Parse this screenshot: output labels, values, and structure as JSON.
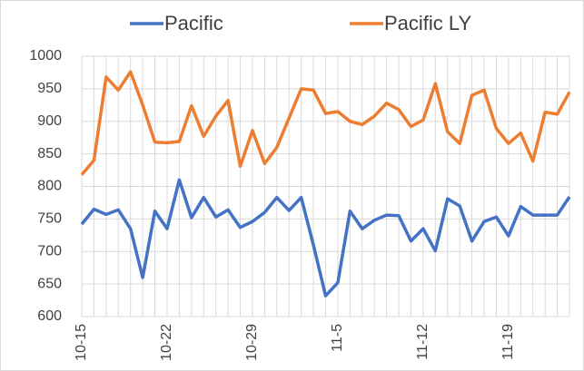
{
  "chart_data": {
    "type": "line",
    "categories": [
      "10-15",
      null,
      null,
      null,
      null,
      null,
      null,
      "10-22",
      null,
      null,
      null,
      null,
      null,
      null,
      "10-29",
      null,
      null,
      null,
      null,
      null,
      null,
      "11-5",
      null,
      null,
      null,
      null,
      null,
      null,
      "11-12",
      null,
      null,
      null,
      null,
      null,
      null,
      "11-19",
      null,
      null,
      null,
      null,
      null
    ],
    "series": [
      {
        "name": "Pacific",
        "color": "#4472c4",
        "values": [
          742,
          765,
          757,
          764,
          735,
          660,
          762,
          735,
          810,
          752,
          783,
          753,
          764,
          737,
          746,
          760,
          783,
          763,
          783,
          710,
          632,
          652,
          762,
          735,
          748,
          756,
          755,
          716,
          735,
          701,
          781,
          770,
          716,
          746,
          753,
          724,
          769,
          756,
          756,
          756,
          784
        ]
      },
      {
        "name": "Pacific LY",
        "color": "#ed7d31",
        "values": [
          818,
          840,
          968,
          948,
          976,
          925,
          868,
          867,
          869,
          924,
          877,
          908,
          932,
          831,
          886,
          835,
          860,
          905,
          950,
          948,
          912,
          915,
          900,
          895,
          908,
          928,
          918,
          892,
          902,
          958,
          884,
          866,
          940,
          948,
          889,
          866,
          882,
          839,
          914,
          911,
          945
        ]
      }
    ],
    "ylim": [
      600,
      1000
    ],
    "yticks": [
      600,
      650,
      700,
      750,
      800,
      850,
      900,
      950,
      1000
    ],
    "grid": true,
    "legend": "top"
  }
}
